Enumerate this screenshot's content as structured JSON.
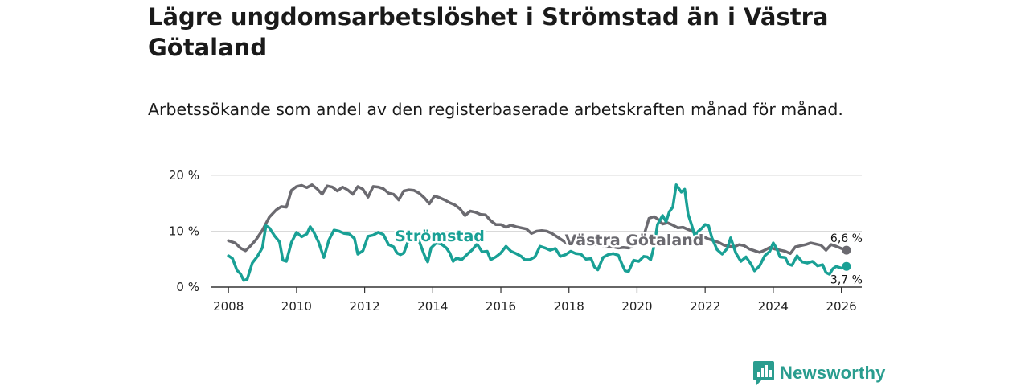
{
  "title": "Lägre ungdomsarbetslöshet i Strömstad än i Västra Götaland",
  "subtitle": "Arbetssökande som andel av den registerbaserade arbetskraften månad för månad.",
  "brand": {
    "name": "Newsworthy"
  },
  "colors": {
    "stromstad": "#19a095",
    "vastra": "#6b6a70",
    "grid": "#d9d9d9",
    "axis": "#333333"
  },
  "chart_data": {
    "type": "line",
    "title": "Lägre ungdomsarbetslöshet i Strömstad än i Västra Götaland",
    "xlabel": "",
    "ylabel": "",
    "xlim": [
      2007.5,
      2026.6
    ],
    "ylim": [
      0,
      20
    ],
    "x_ticks": [
      2008,
      2010,
      2012,
      2014,
      2016,
      2018,
      2020,
      2022,
      2024,
      2026
    ],
    "x_tick_labels": [
      "2008",
      "2010",
      "2012",
      "2014",
      "2016",
      "2018",
      "2020",
      "2022",
      "2024",
      "2026"
    ],
    "y_ticks": [
      0,
      10,
      20
    ],
    "y_tick_labels": [
      "0 %",
      "10 %",
      "20 %"
    ],
    "grid": true,
    "series": [
      {
        "name": "Västra Götaland",
        "label": "Västra Götaland",
        "end_label": "6,6 %",
        "points": [
          [
            2008.0,
            8.3
          ],
          [
            2008.2,
            7.9
          ],
          [
            2008.35,
            7.0
          ],
          [
            2008.5,
            6.5
          ],
          [
            2008.65,
            7.4
          ],
          [
            2008.8,
            8.4
          ],
          [
            2009.0,
            10.2
          ],
          [
            2009.2,
            12.5
          ],
          [
            2009.4,
            13.8
          ],
          [
            2009.55,
            14.4
          ],
          [
            2009.7,
            14.3
          ],
          [
            2009.85,
            17.3
          ],
          [
            2010.0,
            18.0
          ],
          [
            2010.15,
            18.2
          ],
          [
            2010.3,
            17.8
          ],
          [
            2010.45,
            18.3
          ],
          [
            2010.6,
            17.6
          ],
          [
            2010.75,
            16.6
          ],
          [
            2010.9,
            18.1
          ],
          [
            2011.05,
            17.9
          ],
          [
            2011.2,
            17.2
          ],
          [
            2011.35,
            17.9
          ],
          [
            2011.5,
            17.4
          ],
          [
            2011.65,
            16.6
          ],
          [
            2011.8,
            18.0
          ],
          [
            2011.95,
            17.5
          ],
          [
            2012.1,
            16.1
          ],
          [
            2012.25,
            18.0
          ],
          [
            2012.4,
            17.9
          ],
          [
            2012.55,
            17.6
          ],
          [
            2012.7,
            16.8
          ],
          [
            2012.85,
            16.6
          ],
          [
            2013.0,
            15.6
          ],
          [
            2013.15,
            17.2
          ],
          [
            2013.3,
            17.4
          ],
          [
            2013.45,
            17.3
          ],
          [
            2013.6,
            16.8
          ],
          [
            2013.75,
            16.0
          ],
          [
            2013.9,
            14.9
          ],
          [
            2014.05,
            16.3
          ],
          [
            2014.2,
            16.0
          ],
          [
            2014.35,
            15.6
          ],
          [
            2014.5,
            15.1
          ],
          [
            2014.65,
            14.7
          ],
          [
            2014.8,
            14.0
          ],
          [
            2014.95,
            12.8
          ],
          [
            2015.1,
            13.6
          ],
          [
            2015.25,
            13.4
          ],
          [
            2015.4,
            13.0
          ],
          [
            2015.55,
            12.9
          ],
          [
            2015.7,
            11.9
          ],
          [
            2015.85,
            11.2
          ],
          [
            2016.0,
            11.2
          ],
          [
            2016.15,
            10.7
          ],
          [
            2016.3,
            11.1
          ],
          [
            2016.45,
            10.8
          ],
          [
            2016.6,
            10.6
          ],
          [
            2016.75,
            10.4
          ],
          [
            2016.9,
            9.6
          ],
          [
            2017.05,
            10.0
          ],
          [
            2017.2,
            10.1
          ],
          [
            2017.35,
            10.0
          ],
          [
            2017.5,
            9.6
          ],
          [
            2017.65,
            9.0
          ],
          [
            2017.8,
            8.4
          ],
          [
            2017.95,
            7.8
          ],
          [
            2018.1,
            8.4
          ],
          [
            2018.25,
            8.3
          ],
          [
            2018.4,
            8.1
          ],
          [
            2018.55,
            8.0
          ],
          [
            2018.7,
            7.6
          ],
          [
            2018.85,
            7.6
          ],
          [
            2019.0,
            7.4
          ],
          [
            2019.15,
            7.3
          ],
          [
            2019.3,
            7.2
          ],
          [
            2019.45,
            7.0
          ],
          [
            2019.6,
            7.1
          ],
          [
            2019.75,
            7.0
          ],
          [
            2019.9,
            7.4
          ],
          [
            2020.05,
            8.0
          ],
          [
            2020.2,
            9.2
          ],
          [
            2020.35,
            12.3
          ],
          [
            2020.5,
            12.6
          ],
          [
            2020.6,
            12.2
          ],
          [
            2020.75,
            11.3
          ],
          [
            2020.9,
            11.5
          ],
          [
            2021.05,
            11.1
          ],
          [
            2021.2,
            10.6
          ],
          [
            2021.35,
            10.7
          ],
          [
            2021.5,
            10.3
          ],
          [
            2021.65,
            9.9
          ],
          [
            2021.8,
            9.1
          ],
          [
            2021.95,
            9.0
          ],
          [
            2022.1,
            8.6
          ],
          [
            2022.25,
            8.3
          ],
          [
            2022.4,
            8.0
          ],
          [
            2022.55,
            7.5
          ],
          [
            2022.7,
            7.3
          ],
          [
            2022.85,
            7.2
          ],
          [
            2023.0,
            7.6
          ],
          [
            2023.15,
            7.4
          ],
          [
            2023.3,
            6.8
          ],
          [
            2023.45,
            6.5
          ],
          [
            2023.6,
            6.2
          ],
          [
            2023.75,
            6.6
          ],
          [
            2023.9,
            7.1
          ],
          [
            2024.05,
            6.8
          ],
          [
            2024.2,
            6.6
          ],
          [
            2024.35,
            6.4
          ],
          [
            2024.5,
            6.0
          ],
          [
            2024.65,
            7.2
          ],
          [
            2024.8,
            7.4
          ],
          [
            2024.95,
            7.6
          ],
          [
            2025.1,
            7.9
          ],
          [
            2025.25,
            7.7
          ],
          [
            2025.4,
            7.5
          ],
          [
            2025.55,
            6.6
          ],
          [
            2025.7,
            7.6
          ],
          [
            2025.85,
            7.3
          ],
          [
            2026.0,
            6.9
          ],
          [
            2026.15,
            6.6
          ]
        ]
      },
      {
        "name": "Strömstad",
        "label": "Strömstad",
        "end_label": "3,7 %",
        "points": [
          [
            2008.0,
            5.6
          ],
          [
            2008.12,
            5.1
          ],
          [
            2008.25,
            3.0
          ],
          [
            2008.35,
            2.4
          ],
          [
            2008.45,
            1.2
          ],
          [
            2008.55,
            1.4
          ],
          [
            2008.7,
            4.3
          ],
          [
            2008.85,
            5.5
          ],
          [
            2009.0,
            7.1
          ],
          [
            2009.1,
            11.0
          ],
          [
            2009.2,
            10.6
          ],
          [
            2009.35,
            9.2
          ],
          [
            2009.5,
            8.1
          ],
          [
            2009.6,
            4.8
          ],
          [
            2009.7,
            4.6
          ],
          [
            2009.85,
            8.0
          ],
          [
            2010.0,
            9.8
          ],
          [
            2010.15,
            9.0
          ],
          [
            2010.3,
            9.5
          ],
          [
            2010.4,
            10.8
          ],
          [
            2010.5,
            9.9
          ],
          [
            2010.65,
            8.0
          ],
          [
            2010.8,
            5.3
          ],
          [
            2010.95,
            8.4
          ],
          [
            2011.1,
            10.2
          ],
          [
            2011.25,
            10.0
          ],
          [
            2011.4,
            9.6
          ],
          [
            2011.55,
            9.5
          ],
          [
            2011.7,
            8.7
          ],
          [
            2011.8,
            5.9
          ],
          [
            2011.95,
            6.5
          ],
          [
            2012.1,
            9.1
          ],
          [
            2012.25,
            9.3
          ],
          [
            2012.4,
            9.8
          ],
          [
            2012.55,
            9.4
          ],
          [
            2012.7,
            7.6
          ],
          [
            2012.85,
            7.2
          ],
          [
            2012.95,
            6.1
          ],
          [
            2013.05,
            5.8
          ],
          [
            2013.15,
            6.1
          ],
          [
            2013.3,
            8.6
          ],
          [
            2013.45,
            9.2
          ],
          [
            2013.6,
            8.2
          ],
          [
            2013.75,
            5.8
          ],
          [
            2013.85,
            4.5
          ],
          [
            2013.95,
            7.0
          ],
          [
            2014.1,
            7.9
          ],
          [
            2014.25,
            7.7
          ],
          [
            2014.4,
            7.0
          ],
          [
            2014.5,
            6.1
          ],
          [
            2014.6,
            4.6
          ],
          [
            2014.7,
            5.2
          ],
          [
            2014.85,
            4.9
          ],
          [
            2015.0,
            5.8
          ],
          [
            2015.15,
            6.6
          ],
          [
            2015.3,
            7.7
          ],
          [
            2015.45,
            6.3
          ],
          [
            2015.6,
            6.4
          ],
          [
            2015.7,
            4.9
          ],
          [
            2015.85,
            5.4
          ],
          [
            2016.0,
            6.1
          ],
          [
            2016.15,
            7.3
          ],
          [
            2016.3,
            6.4
          ],
          [
            2016.45,
            6.0
          ],
          [
            2016.6,
            5.5
          ],
          [
            2016.7,
            4.9
          ],
          [
            2016.85,
            4.9
          ],
          [
            2017.0,
            5.4
          ],
          [
            2017.15,
            7.3
          ],
          [
            2017.3,
            7.0
          ],
          [
            2017.45,
            6.6
          ],
          [
            2017.6,
            6.9
          ],
          [
            2017.75,
            5.5
          ],
          [
            2017.9,
            5.8
          ],
          [
            2018.05,
            6.4
          ],
          [
            2018.2,
            6.0
          ],
          [
            2018.35,
            5.9
          ],
          [
            2018.5,
            5.0
          ],
          [
            2018.65,
            5.1
          ],
          [
            2018.75,
            3.6
          ],
          [
            2018.85,
            3.1
          ],
          [
            2019.0,
            5.3
          ],
          [
            2019.15,
            5.8
          ],
          [
            2019.3,
            6.0
          ],
          [
            2019.45,
            5.7
          ],
          [
            2019.55,
            4.2
          ],
          [
            2019.65,
            2.9
          ],
          [
            2019.75,
            2.8
          ],
          [
            2019.9,
            4.8
          ],
          [
            2020.05,
            4.6
          ],
          [
            2020.2,
            5.5
          ],
          [
            2020.3,
            5.4
          ],
          [
            2020.4,
            4.9
          ],
          [
            2020.5,
            7.3
          ],
          [
            2020.6,
            11.2
          ],
          [
            2020.75,
            12.8
          ],
          [
            2020.85,
            11.7
          ],
          [
            2020.95,
            13.5
          ],
          [
            2021.05,
            14.3
          ],
          [
            2021.15,
            18.3
          ],
          [
            2021.3,
            17.0
          ],
          [
            2021.4,
            17.5
          ],
          [
            2021.5,
            13.0
          ],
          [
            2021.6,
            11.2
          ],
          [
            2021.7,
            9.1
          ],
          [
            2021.8,
            10.0
          ],
          [
            2021.9,
            10.5
          ],
          [
            2022.0,
            11.2
          ],
          [
            2022.1,
            11.0
          ],
          [
            2022.2,
            8.8
          ],
          [
            2022.35,
            6.7
          ],
          [
            2022.5,
            5.9
          ],
          [
            2022.65,
            6.9
          ],
          [
            2022.75,
            8.8
          ],
          [
            2022.9,
            6.1
          ],
          [
            2023.05,
            4.6
          ],
          [
            2023.2,
            5.4
          ],
          [
            2023.35,
            4.1
          ],
          [
            2023.45,
            2.9
          ],
          [
            2023.6,
            3.8
          ],
          [
            2023.75,
            5.6
          ],
          [
            2023.9,
            6.4
          ],
          [
            2024.0,
            7.9
          ],
          [
            2024.1,
            6.9
          ],
          [
            2024.2,
            5.4
          ],
          [
            2024.35,
            5.3
          ],
          [
            2024.45,
            4.1
          ],
          [
            2024.55,
            3.9
          ],
          [
            2024.7,
            5.6
          ],
          [
            2024.85,
            4.5
          ],
          [
            2025.0,
            4.3
          ],
          [
            2025.15,
            4.6
          ],
          [
            2025.3,
            3.8
          ],
          [
            2025.45,
            4.0
          ],
          [
            2025.55,
            2.6
          ],
          [
            2025.65,
            2.3
          ],
          [
            2025.75,
            3.3
          ],
          [
            2025.85,
            3.7
          ],
          [
            2026.0,
            3.4
          ],
          [
            2026.15,
            3.7
          ]
        ]
      }
    ]
  }
}
